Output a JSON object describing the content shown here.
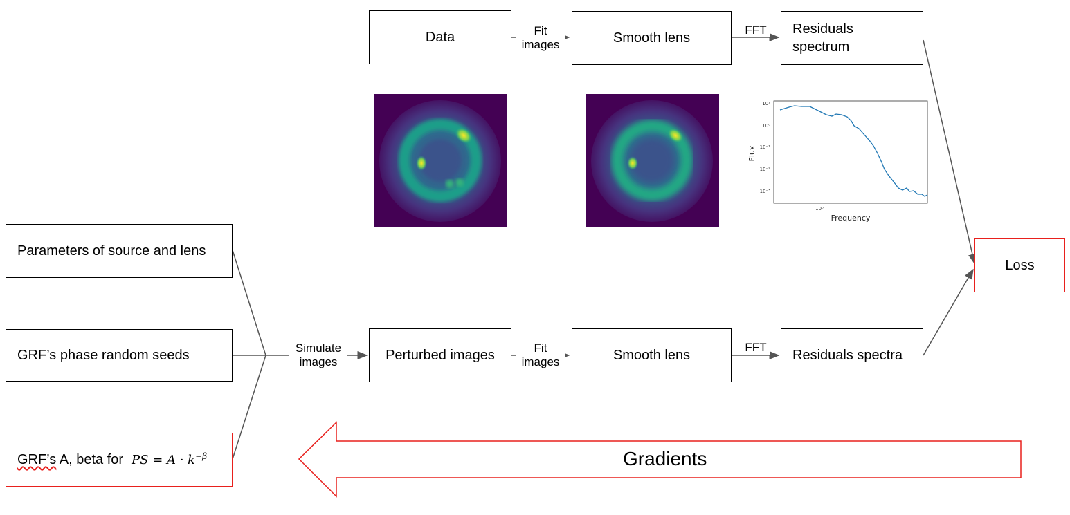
{
  "boxes": {
    "data": "Data",
    "smooth_lens_top": "Smooth lens",
    "residuals_spectrum": "Residuals\nspectrum",
    "params": "Parameters of source and lens",
    "seeds": "GRF’s phase random seeds",
    "grf_prefix": "GRF’s",
    "grf_rest": " A, beta for",
    "perturbed": "Perturbed images",
    "smooth_lens_bottom": "Smooth lens",
    "residuals_spectra": "Residuals spectra",
    "loss": "Loss"
  },
  "equation": {
    "lhs": "PS = A · k",
    "exp": "−β"
  },
  "edge_labels": {
    "fit_top": "Fit\nimages",
    "fft_top": "FFT",
    "simulate": "Simulate\nimages",
    "fit_bottom": "Fit\nimages",
    "fft_bottom": "FFT"
  },
  "gradients_label": "Gradients",
  "spectrum_plot": {
    "xlabel": "Frequency",
    "ylabel": "Flux",
    "yticks": [
      "10¹",
      "10⁰",
      "10⁻¹",
      "10⁻²",
      "10⁻³"
    ],
    "xtick": "10⁰"
  },
  "colors": {
    "red": "#e8201d",
    "line": "#555555",
    "viridis_bg": "#440154",
    "plot_line": "#1f77b4"
  }
}
